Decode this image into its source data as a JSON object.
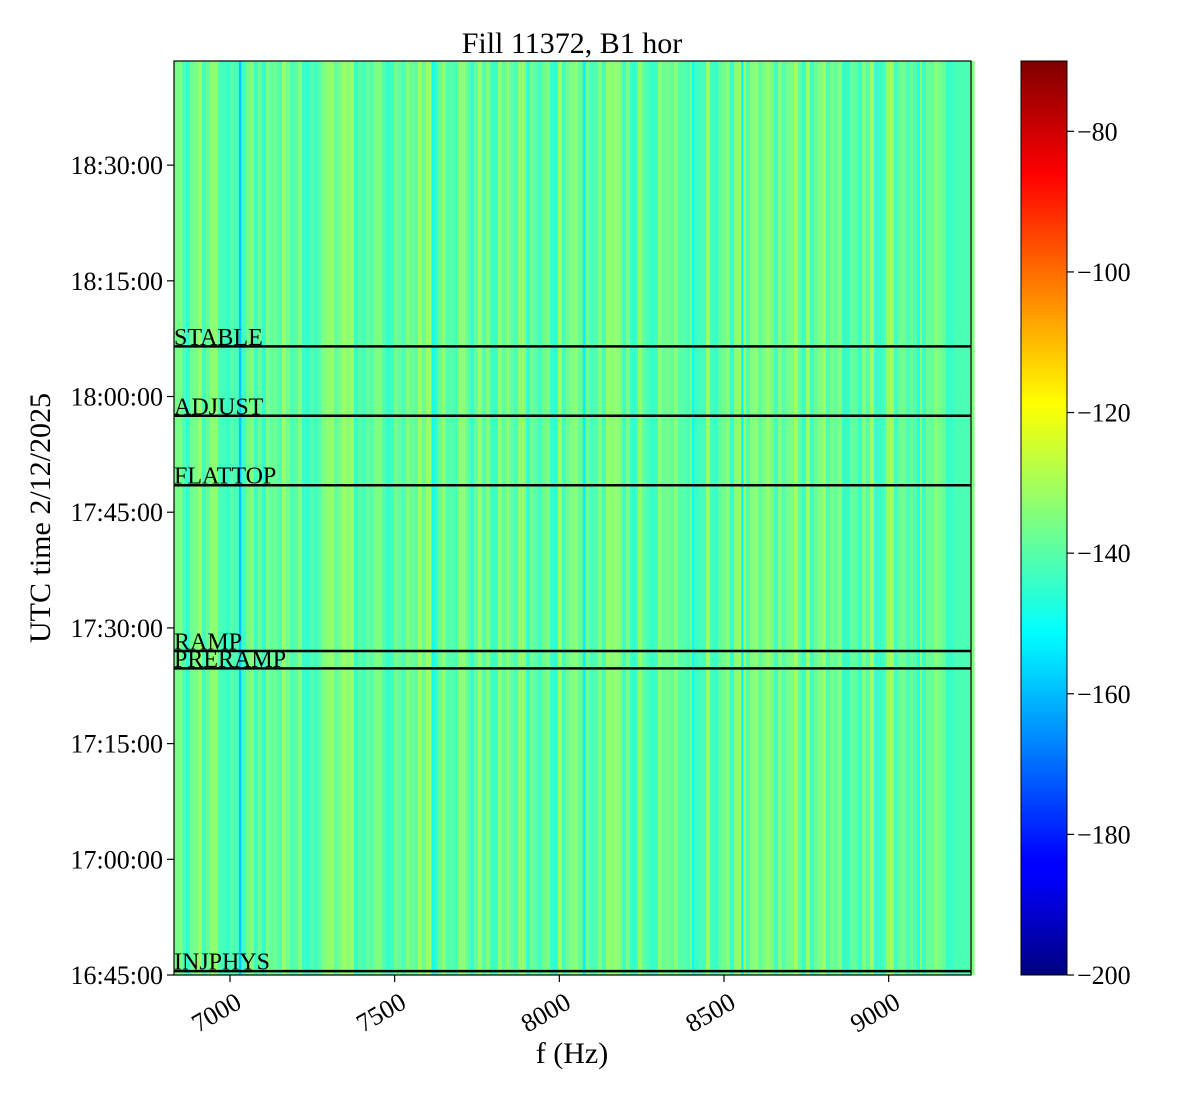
{
  "chart_data": {
    "type": "heatmap",
    "title": "Fill 11372, B1 hor",
    "xlabel": "f (Hz)",
    "ylabel": "UTC time 2/12/2025",
    "xlim": [
      6830,
      9250
    ],
    "ylim_minutes": [
      1005,
      1123.5
    ],
    "x_ticks": [
      {
        "value": 7000,
        "label": "7000"
      },
      {
        "value": 7500,
        "label": "7500"
      },
      {
        "value": 8000,
        "label": "8000"
      },
      {
        "value": 8500,
        "label": "8500"
      },
      {
        "value": 9000,
        "label": "9000"
      }
    ],
    "y_ticks": [
      {
        "value": "16:45:00",
        "label": "16:45:00"
      },
      {
        "value": "17:00:00",
        "label": "17:00:00"
      },
      {
        "value": "17:15:00",
        "label": "17:15:00"
      },
      {
        "value": "17:30:00",
        "label": "17:30:00"
      },
      {
        "value": "17:45:00",
        "label": "17:45:00"
      },
      {
        "value": "18:00:00",
        "label": "18:00:00"
      },
      {
        "value": "18:15:00",
        "label": "18:15:00"
      },
      {
        "value": "18:30:00",
        "label": "18:30:00"
      }
    ],
    "colorbar": {
      "colormap": "jet",
      "vmin": -200,
      "vmax": -70,
      "ticks": [
        -200,
        -180,
        -160,
        -140,
        -120,
        -100,
        -80
      ],
      "tick_labels": [
        "−200",
        "−180",
        "−160",
        "−140",
        "−120",
        "−100",
        "−80"
      ]
    },
    "base_level": -140,
    "dark_lines": [
      {
        "f": 7030,
        "value": -158
      },
      {
        "f": 8075,
        "value": -153
      },
      {
        "f": 8555,
        "value": -152
      },
      {
        "f": 7615,
        "value": -150
      },
      {
        "f": 8405,
        "value": -150
      },
      {
        "f": 9090,
        "value": -148
      }
    ],
    "events": [
      {
        "label": "STABLE",
        "time": "18:06:30"
      },
      {
        "label": "ADJUST",
        "time": "17:57:30"
      },
      {
        "label": "FLATTOP",
        "time": "17:48:30"
      },
      {
        "label": "RAMP",
        "time": "17:27:00"
      },
      {
        "label": "PRERAMP",
        "time": "17:24:45"
      },
      {
        "label": "INJPHYS",
        "time": "16:45:30"
      }
    ]
  }
}
